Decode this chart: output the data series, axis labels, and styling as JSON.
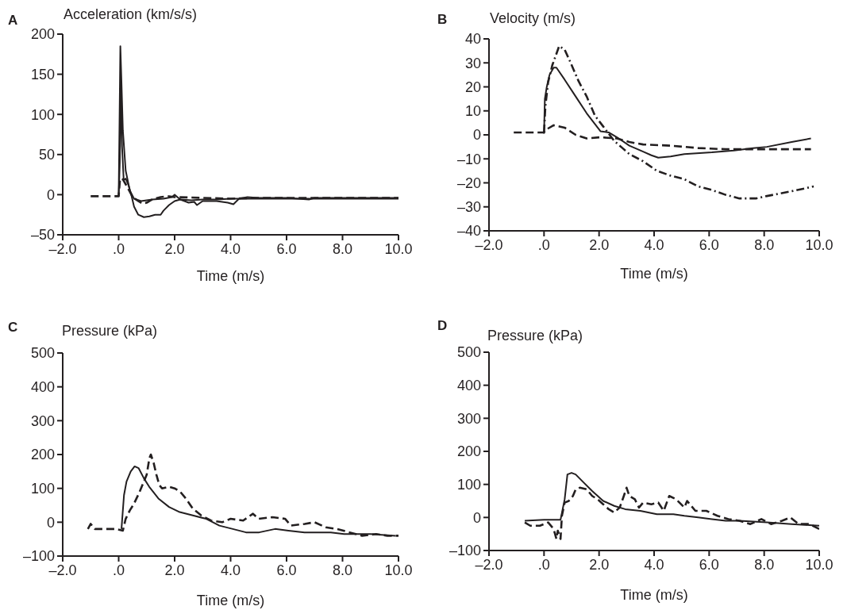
{
  "chart_data": [
    {
      "type": "line",
      "title": "A",
      "ylabel": "Acceleration (km/s/s)",
      "xlabel": "Time (m/s)",
      "xlim": [
        -2,
        10
      ],
      "xticks": [
        {
          "value": -2,
          "label": "–2.0"
        },
        {
          "value": 0,
          "label": ".0"
        },
        {
          "value": 2,
          "label": "2.0"
        },
        {
          "value": 4,
          "label": "4.0"
        },
        {
          "value": 6,
          "label": "6.0"
        },
        {
          "value": 8,
          "label": "8.0"
        },
        {
          "value": 10,
          "label": "10.0"
        }
      ],
      "ylim": [
        -50,
        200
      ],
      "yticks": [
        {
          "value": -50,
          "label": "–50"
        },
        0,
        50,
        100,
        150,
        200
      ],
      "series": [
        {
          "color": "#231f20",
          "line_style": "solid",
          "x": [
            0,
            0.03,
            0.06,
            0.1,
            0.15,
            0.25,
            0.4,
            0.55,
            0.8,
            1.2,
            1.6,
            1.9,
            2.0,
            2.2,
            2.5,
            2.7,
            2.8,
            3.0,
            3.5,
            3.9,
            4.1,
            4.3,
            4.6,
            5.0,
            6.0,
            6.8,
            7.0,
            8.0,
            9.0,
            10.0
          ],
          "values": [
            -2,
            90,
            185,
            140,
            80,
            30,
            5,
            -5,
            -8,
            -6,
            -5,
            -3,
            0,
            -6,
            -10,
            -9,
            -13,
            -8,
            -8,
            -10,
            -12,
            -5,
            -3,
            -4,
            -4,
            -6,
            -4,
            -4,
            -4,
            -4
          ]
        },
        {
          "color": "#231f20",
          "line_style": "solid",
          "x": [
            0,
            0.04,
            0.08,
            0.12,
            0.18,
            0.25,
            0.35,
            0.45,
            0.55,
            0.7,
            0.9,
            1.1,
            1.3,
            1.5,
            1.6,
            1.8,
            2.0,
            2.2,
            2.6,
            3.0,
            3.5,
            4.0,
            5.0,
            6.0,
            7.0,
            8.0,
            9.0,
            10.0
          ],
          "values": [
            -2,
            40,
            140,
            60,
            18,
            20,
            12,
            0,
            -15,
            -25,
            -28,
            -27,
            -25,
            -25,
            -20,
            -13,
            -8,
            -6,
            -7,
            -6,
            -6,
            -5,
            -5,
            -5,
            -5,
            -5,
            -5,
            -5
          ]
        },
        {
          "color": "#231f20",
          "line_style": "dashed",
          "x": [
            -1.0,
            -0.5,
            0,
            0.05,
            0.15,
            0.3,
            0.5,
            0.7,
            0.85,
            1.0,
            1.2,
            1.5,
            1.8,
            2.0,
            3.0,
            4.0,
            5.0,
            6.0,
            7.0,
            8.0,
            9.0,
            10.0
          ],
          "values": [
            -2,
            -2,
            -2,
            20,
            19,
            10,
            -3,
            -8,
            -11,
            -10,
            -6,
            -3,
            -2,
            -3,
            -4,
            -5,
            -4,
            -4,
            -4,
            -4,
            -4,
            -4
          ]
        }
      ]
    },
    {
      "type": "line",
      "title": "B",
      "ylabel": "Velocity (m/s)",
      "xlabel": "Time (m/s)",
      "xlim": [
        -2,
        10
      ],
      "xticks": [
        {
          "value": -2,
          "label": "–2.0"
        },
        {
          "value": 0,
          "label": ".0"
        },
        {
          "value": 2,
          "label": "2.0"
        },
        {
          "value": 4,
          "label": "4.0"
        },
        {
          "value": 6,
          "label": "6.0"
        },
        {
          "value": 8,
          "label": "8.0"
        },
        {
          "value": 10,
          "label": "10.0"
        }
      ],
      "ylim": [
        -40,
        40
      ],
      "yticks": [
        {
          "value": -40,
          "label": "–40"
        },
        {
          "value": -30,
          "label": "–30"
        },
        {
          "value": -20,
          "label": "–20"
        },
        {
          "value": -10,
          "label": "–10"
        },
        0,
        10,
        20,
        30,
        40
      ],
      "series": [
        {
          "color": "#231f20",
          "line_style": "solid",
          "x": [
            0,
            0.03,
            0.1,
            0.2,
            0.35,
            0.45,
            0.75,
            1.15,
            1.55,
            1.85,
            2.05,
            2.35,
            2.65,
            3.1,
            3.6,
            3.9,
            4.15,
            4.6,
            5.1,
            6.1,
            6.9,
            7.6,
            8.1,
            9.0,
            9.7
          ],
          "values": [
            0.5,
            15,
            20,
            25,
            28,
            28,
            23,
            16,
            9,
            4.5,
            1.5,
            1,
            -1,
            -4.5,
            -7,
            -8.5,
            -9.5,
            -9,
            -8,
            -7.3,
            -6.5,
            -5.5,
            -5,
            -3,
            -1.5
          ]
        },
        {
          "color": "#231f20",
          "line_style": "dashed",
          "x": [
            -1.1,
            0,
            0.05,
            0.35,
            0.75,
            1.15,
            1.55,
            2.05,
            2.65,
            3.1,
            3.6,
            4.6,
            5.6,
            6.6,
            7.6,
            8.6,
            9.7
          ],
          "values": [
            1,
            1,
            2,
            4,
            3,
            0,
            -1.5,
            -1,
            -1.5,
            -3,
            -4,
            -4.5,
            -5.5,
            -6,
            -6,
            -6,
            -6
          ]
        },
        {
          "color": "#231f20",
          "line_style": "dashdot",
          "x": [
            0,
            0.05,
            0.15,
            0.3,
            0.55,
            0.75,
            0.95,
            1.25,
            1.55,
            1.85,
            2.15,
            2.55,
            2.85,
            3.1,
            3.6,
            4.1,
            4.6,
            5.1,
            5.6,
            6.1,
            6.6,
            7.1,
            7.7,
            8.1,
            9.0,
            9.8
          ],
          "values": [
            1,
            12,
            22,
            29,
            37,
            35.5,
            30.5,
            22.5,
            16,
            8,
            3.5,
            -2.5,
            -5.5,
            -8,
            -11,
            -15,
            -17,
            -18.5,
            -21.5,
            -23,
            -25,
            -26.5,
            -26.5,
            -25.5,
            -23.5,
            -21.5
          ]
        }
      ]
    },
    {
      "type": "line",
      "title": "C",
      "ylabel": "Pressure (kPa)",
      "xlabel": "Time (m/s)",
      "xlim": [
        -2,
        10
      ],
      "xticks": [
        {
          "value": -2,
          "label": "–2.0"
        },
        {
          "value": 0,
          "label": ".0"
        },
        {
          "value": 2,
          "label": "2.0"
        },
        {
          "value": 4,
          "label": "4.0"
        },
        {
          "value": 6,
          "label": "6.0"
        },
        {
          "value": 8,
          "label": "8.0"
        },
        {
          "value": 10,
          "label": "10.0"
        }
      ],
      "ylim": [
        -100,
        500
      ],
      "yticks": [
        {
          "value": -100,
          "label": "–100"
        },
        0,
        100,
        200,
        300,
        400,
        500
      ],
      "series": [
        {
          "color": "#231f20",
          "line_style": "solid",
          "x": [
            0.1,
            0.19,
            0.28,
            0.43,
            0.57,
            0.71,
            0.9,
            1.09,
            1.42,
            1.8,
            2.18,
            2.65,
            3.13,
            3.6,
            4.08,
            4.55,
            5.02,
            5.59,
            6.07,
            6.64,
            7.58,
            8.06,
            9.0,
            9.9
          ],
          "values": [
            -20,
            80,
            120,
            150,
            165,
            160,
            130,
            105,
            70,
            45,
            30,
            20,
            10,
            -10,
            -20,
            -30,
            -30,
            -20,
            -25,
            -30,
            -30,
            -35,
            -35,
            -40
          ]
        },
        {
          "color": "#231f20",
          "line_style": "dashed",
          "x": [
            -1.1,
            -1.0,
            -0.85,
            -0.45,
            -0.1,
            0.15,
            0.25,
            0.4,
            0.55,
            0.75,
            0.9,
            1.0,
            1.1,
            1.15,
            1.25,
            1.35,
            1.45,
            1.55,
            1.8,
            2.0,
            2.2,
            2.4,
            2.65,
            2.95,
            3.3,
            3.7,
            4.0,
            4.45,
            4.8,
            5.0,
            5.5,
            5.95,
            6.15,
            6.65,
            7.0,
            7.4,
            7.8,
            8.25,
            8.7,
            9.2,
            9.6,
            10.0
          ],
          "values": [
            -20,
            -5,
            -20,
            -20,
            -20,
            -25,
            10,
            35,
            55,
            90,
            120,
            140,
            190,
            200,
            175,
            140,
            110,
            100,
            105,
            100,
            90,
            70,
            40,
            20,
            5,
            0,
            10,
            5,
            25,
            10,
            15,
            10,
            -10,
            -5,
            0,
            -15,
            -20,
            -30,
            -40,
            -35,
            -40,
            -40
          ]
        }
      ]
    },
    {
      "type": "line",
      "title": "D",
      "ylabel": "Pressure (kPa)",
      "xlabel": "Time (m/s)",
      "xlim": [
        -2,
        10
      ],
      "xticks": [
        {
          "value": -2,
          "label": "–2.0"
        },
        {
          "value": 0,
          "label": ".0"
        },
        {
          "value": 2,
          "label": "2.0"
        },
        {
          "value": 4,
          "label": "4.0"
        },
        {
          "value": 6,
          "label": "6.0"
        },
        {
          "value": 8,
          "label": "8.0"
        },
        {
          "value": 10,
          "label": "10.0"
        }
      ],
      "ylim": [
        -100,
        500
      ],
      "yticks": [
        {
          "value": -100,
          "label": "–100"
        },
        0,
        100,
        200,
        300,
        400,
        500
      ],
      "series": [
        {
          "color": "#231f20",
          "line_style": "solid",
          "x": [
            -0.7,
            0.0,
            0.6,
            0.75,
            0.85,
            1.0,
            1.15,
            1.45,
            1.75,
            2.15,
            2.55,
            2.95,
            3.5,
            4.1,
            4.7,
            5.1,
            5.6,
            6.1,
            6.6,
            7.1,
            8.1,
            9.0,
            10.0
          ],
          "values": [
            -10,
            -7,
            -7,
            55,
            130,
            135,
            130,
            105,
            80,
            50,
            35,
            25,
            20,
            10,
            10,
            5,
            0,
            -5,
            -10,
            -10,
            -15,
            -20,
            -25
          ]
        },
        {
          "color": "#231f20",
          "line_style": "dashed",
          "x": [
            -0.7,
            -0.5,
            -0.15,
            0.15,
            0.35,
            0.45,
            0.5,
            0.6,
            0.65,
            0.75,
            0.9,
            1.05,
            1.15,
            1.3,
            1.55,
            1.75,
            1.95,
            2.15,
            2.35,
            2.55,
            2.75,
            2.9,
            3.0,
            3.1,
            3.3,
            3.45,
            3.6,
            3.9,
            4.15,
            4.35,
            4.55,
            4.8,
            5.1,
            5.2,
            5.5,
            5.9,
            6.3,
            6.7,
            7.1,
            7.5,
            7.9,
            8.25,
            8.65,
            8.95,
            9.25,
            9.65,
            10.0
          ],
          "values": [
            -15,
            -25,
            -25,
            -15,
            -35,
            -65,
            -40,
            -65,
            5,
            45,
            50,
            65,
            85,
            90,
            85,
            65,
            55,
            40,
            25,
            15,
            30,
            65,
            90,
            65,
            55,
            30,
            45,
            40,
            45,
            20,
            65,
            55,
            30,
            50,
            20,
            20,
            5,
            -5,
            -10,
            -20,
            -5,
            -20,
            -10,
            0,
            -20,
            -20,
            -35
          ]
        }
      ]
    }
  ]
}
